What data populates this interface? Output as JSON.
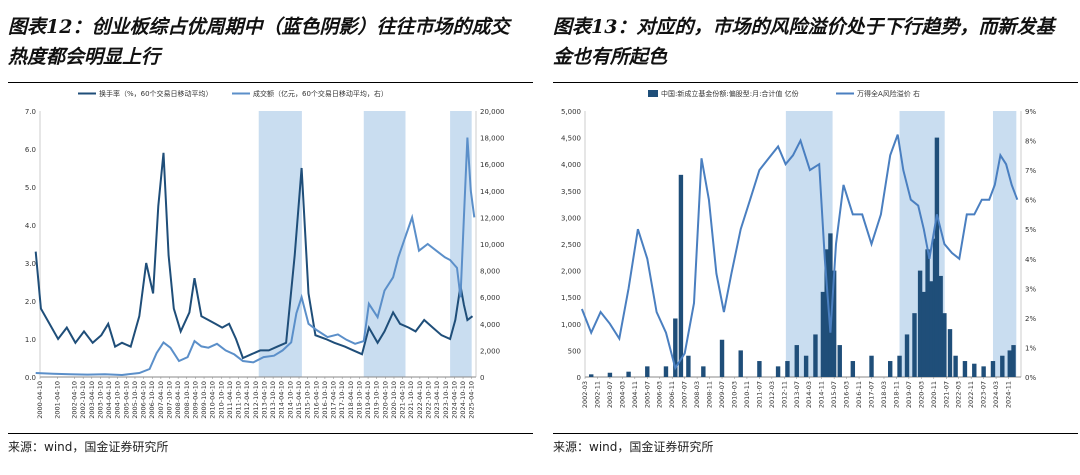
{
  "left": {
    "title": "图表12：创业板综占优周期中（蓝色阴影）往往市场的成交热度都会明显上行",
    "source": "来源：wind，国金证券研究所"
  },
  "right": {
    "title": "图表13：对应的，市场的风险溢价处于下行趋势，而新发基金也有所起色",
    "source": "来源：wind，国金证券研究所"
  },
  "chart_data": [
    {
      "type": "line",
      "legend_position": "top",
      "x_ticks": [
        "2000-04-10",
        "2001-04-10",
        "2002-04-10",
        "2002-10-10",
        "2003-04-10",
        "2003-10-10",
        "2004-04-10",
        "2004-10-10",
        "2005-04-10",
        "2005-10-10",
        "2006-04-10",
        "2006-10-10",
        "2007-04-10",
        "2007-10-10",
        "2008-04-10",
        "2008-10-10",
        "2009-04-10",
        "2009-10-10",
        "2010-04-10",
        "2010-10-10",
        "2011-04-10",
        "2011-10-10",
        "2012-04-10",
        "2012-10-10",
        "2013-04-10",
        "2013-10-10",
        "2014-04-10",
        "2014-10-10",
        "2015-04-10",
        "2015-10-10",
        "2016-04-10",
        "2016-10-10",
        "2017-04-10",
        "2017-10-10",
        "2018-04-10",
        "2018-10-10",
        "2019-04-10",
        "2019-10-10",
        "2020-04-10",
        "2020-10-10",
        "2021-04-10",
        "2021-10-10",
        "2022-04-10",
        "2022-10-10",
        "2023-04-10",
        "2023-10-10",
        "2024-04-10",
        "2024-10-10",
        "2025-04-10"
      ],
      "y_left": {
        "min": 0,
        "max": 7,
        "ticks": [
          "0.0",
          "1.0",
          "2.0",
          "3.0",
          "4.0",
          "5.0",
          "6.0",
          "7.0"
        ]
      },
      "y_right": {
        "min": 0,
        "max": 20000,
        "ticks": [
          "0",
          "2,000",
          "4,000",
          "6,000",
          "8,000",
          "10,000",
          "12,000",
          "14,000",
          "16,000",
          "18,000",
          "20,000"
        ]
      },
      "shaded_ranges": [
        [
          "2012-12",
          "2015-06"
        ],
        [
          "2019-01",
          "2021-06"
        ],
        [
          "2024-01",
          "2025-04"
        ]
      ],
      "series": [
        {
          "name": "换手率（%，60个交易日移动平均）",
          "axis": "left",
          "color": "#1f4e79",
          "x": [
            2000.0,
            2000.3,
            2000.8,
            2001.3,
            2001.8,
            2002.3,
            2002.8,
            2003.3,
            2003.8,
            2004.2,
            2004.6,
            2005.0,
            2005.5,
            2006.0,
            2006.4,
            2006.8,
            2007.1,
            2007.4,
            2007.7,
            2008.0,
            2008.4,
            2008.9,
            2009.2,
            2009.6,
            2010.0,
            2010.4,
            2010.8,
            2011.2,
            2011.6,
            2012.0,
            2012.5,
            2013.0,
            2013.5,
            2014.0,
            2014.5,
            2015.0,
            2015.4,
            2015.8,
            2016.2,
            2016.8,
            2017.3,
            2017.9,
            2018.4,
            2018.9,
            2019.3,
            2019.8,
            2020.2,
            2020.7,
            2021.1,
            2021.6,
            2022.0,
            2022.5,
            2023.0,
            2023.5,
            2024.0,
            2024.3,
            2024.6,
            2024.8,
            2025.0,
            2025.3
          ],
          "y": [
            3.3,
            1.8,
            1.4,
            1.0,
            1.3,
            0.9,
            1.2,
            0.9,
            1.1,
            1.4,
            0.8,
            0.9,
            0.8,
            1.6,
            3.0,
            2.2,
            4.5,
            5.9,
            3.2,
            1.8,
            1.2,
            1.7,
            2.6,
            1.6,
            1.5,
            1.4,
            1.3,
            1.4,
            1.0,
            0.5,
            0.6,
            0.7,
            0.7,
            0.8,
            0.9,
            3.2,
            5.5,
            2.2,
            1.1,
            1.0,
            0.9,
            0.8,
            0.7,
            0.6,
            1.3,
            0.9,
            1.2,
            1.7,
            1.4,
            1.3,
            1.2,
            1.5,
            1.3,
            1.1,
            1.0,
            1.5,
            2.4,
            1.9,
            1.5,
            1.6
          ]
        },
        {
          "name": "成交额（亿元，60个交易日移动平均，右）",
          "axis": "right",
          "color": "#5b8fc9",
          "x": [
            2000.0,
            2001.0,
            2002.0,
            2003.0,
            2004.0,
            2005.0,
            2006.0,
            2006.6,
            2007.0,
            2007.4,
            2007.8,
            2008.3,
            2008.8,
            2009.2,
            2009.6,
            2010.0,
            2010.5,
            2011.0,
            2011.5,
            2012.0,
            2012.6,
            2013.2,
            2013.8,
            2014.3,
            2014.8,
            2015.1,
            2015.4,
            2015.8,
            2016.3,
            2016.9,
            2017.5,
            2018.0,
            2018.5,
            2019.0,
            2019.3,
            2019.8,
            2020.2,
            2020.7,
            2021.0,
            2021.4,
            2021.8,
            2022.2,
            2022.7,
            2023.2,
            2023.7,
            2024.0,
            2024.4,
            2024.6,
            2024.8,
            2025.0,
            2025.2,
            2025.4
          ],
          "y": [
            300,
            250,
            200,
            180,
            200,
            150,
            300,
            600,
            1800,
            2600,
            2200,
            1200,
            1500,
            2700,
            2300,
            2200,
            2500,
            2000,
            1700,
            1200,
            1100,
            1500,
            1600,
            2000,
            2600,
            4800,
            6000,
            4000,
            3500,
            3000,
            3200,
            2800,
            2500,
            2700,
            5500,
            4500,
            6500,
            7500,
            9000,
            10500,
            12000,
            9500,
            10000,
            9500,
            9000,
            8800,
            8200,
            6000,
            12000,
            18000,
            14000,
            12000
          ]
        }
      ]
    },
    {
      "type": "bar+line",
      "legend_position": "top",
      "x_ticks": [
        "2002-03",
        "2002-11",
        "2003-07",
        "2004-03",
        "2004-11",
        "2005-07",
        "2006-03",
        "2006-11",
        "2007-07",
        "2008-03",
        "2008-11",
        "2009-07",
        "2010-03",
        "2010-11",
        "2011-07",
        "2012-03",
        "2012-11",
        "2013-07",
        "2014-03",
        "2014-11",
        "2015-07",
        "2016-03",
        "2016-11",
        "2017-07",
        "2018-03",
        "2018-11",
        "2019-07",
        "2020-03",
        "2020-11",
        "2021-07",
        "2022-03",
        "2022-11",
        "2023-07",
        "2024-03",
        "2024-11"
      ],
      "y_left": {
        "min": 0,
        "max": 5000,
        "ticks": [
          "0",
          "500",
          "1,000",
          "1,500",
          "2,000",
          "2,500",
          "3,000",
          "3,500",
          "4,000",
          "4,500",
          "5,000"
        ]
      },
      "y_right": {
        "min": 0,
        "max": 9,
        "ticks": [
          "0%",
          "1%",
          "2%",
          "3%",
          "4%",
          "5%",
          "6%",
          "7%",
          "8%",
          "9%"
        ]
      },
      "shaded_ranges": [
        [
          "2012-12",
          "2015-06"
        ],
        [
          "2019-01",
          "2021-06"
        ],
        [
          "2024-01",
          "2025-04"
        ]
      ],
      "series": [
        {
          "name": "中国:新成立基金份额:偏股型:月:合计值 亿份",
          "axis": "left",
          "kind": "bar",
          "color": "#1f4e79",
          "x": [
            2002.5,
            2003.5,
            2004.5,
            2005.5,
            2006.5,
            2007.0,
            2007.3,
            2007.7,
            2008.5,
            2009.5,
            2010.5,
            2011.5,
            2012.5,
            2013.0,
            2013.5,
            2014.0,
            2014.5,
            2014.9,
            2015.1,
            2015.3,
            2015.5,
            2015.8,
            2016.5,
            2017.5,
            2018.5,
            2019.0,
            2019.4,
            2019.8,
            2020.1,
            2020.3,
            2020.5,
            2020.7,
            2020.9,
            2021.0,
            2021.2,
            2021.4,
            2021.7,
            2022.0,
            2022.5,
            2023.0,
            2023.5,
            2024.0,
            2024.5,
            2024.9,
            2025.1
          ],
          "y": [
            50,
            80,
            100,
            200,
            200,
            1100,
            3800,
            400,
            200,
            700,
            500,
            300,
            200,
            300,
            600,
            400,
            800,
            1600,
            2400,
            2700,
            2000,
            600,
            300,
            400,
            300,
            400,
            800,
            1200,
            2000,
            1600,
            2400,
            1800,
            2600,
            4500,
            1900,
            1200,
            900,
            400,
            300,
            250,
            200,
            300,
            400,
            500,
            600
          ]
        },
        {
          "name": "万得全A风险溢价 右",
          "axis": "right",
          "kind": "line",
          "color": "#4a7fc0",
          "x": [
            2002.0,
            2002.5,
            2003.0,
            2003.5,
            2004.0,
            2004.5,
            2005.0,
            2005.5,
            2006.0,
            2006.5,
            2007.0,
            2007.5,
            2008.0,
            2008.4,
            2008.8,
            2009.2,
            2009.6,
            2010.0,
            2010.5,
            2011.0,
            2011.5,
            2012.0,
            2012.5,
            2012.9,
            2013.3,
            2013.7,
            2014.2,
            2014.7,
            2015.0,
            2015.3,
            2015.6,
            2016.0,
            2016.5,
            2017.0,
            2017.5,
            2018.0,
            2018.5,
            2018.9,
            2019.2,
            2019.6,
            2020.0,
            2020.3,
            2020.6,
            2021.0,
            2021.4,
            2021.8,
            2022.2,
            2022.6,
            2023.0,
            2023.4,
            2023.8,
            2024.1,
            2024.4,
            2024.7,
            2025.0,
            2025.3
          ],
          "y": [
            2.3,
            1.5,
            2.2,
            1.8,
            1.3,
            3.0,
            5.0,
            4.0,
            2.2,
            1.5,
            0.3,
            0.8,
            2.5,
            7.4,
            6.0,
            3.5,
            2.2,
            3.5,
            5.0,
            6.0,
            7.0,
            7.4,
            7.8,
            7.2,
            7.5,
            8.0,
            7.0,
            7.2,
            4.0,
            1.5,
            4.5,
            6.5,
            5.5,
            5.5,
            4.5,
            5.5,
            7.5,
            8.2,
            7.0,
            6.0,
            5.8,
            5.0,
            4.0,
            5.5,
            4.5,
            4.2,
            4.0,
            5.5,
            5.5,
            6.0,
            6.0,
            6.5,
            7.5,
            7.2,
            6.5,
            6.0
          ]
        }
      ]
    }
  ]
}
